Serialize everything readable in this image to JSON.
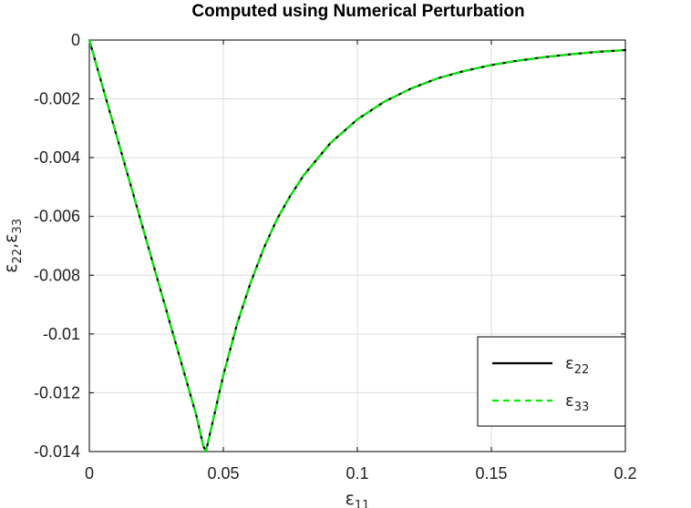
{
  "chart_data": {
    "type": "line",
    "title": "Computed using Numerical Perturbation",
    "xlabel": {
      "base": "ε",
      "sub": "11"
    },
    "ylabel": {
      "base1": "ε",
      "sub1": "22",
      "sep": ",",
      "base2": "ε",
      "sub2": "33"
    },
    "xlim": [
      0,
      0.2
    ],
    "ylim": [
      -0.014,
      0
    ],
    "xticks": [
      0,
      0.05,
      0.1,
      0.15,
      0.2
    ],
    "xtick_labels": [
      "0",
      "0.05",
      "0.1",
      "0.15",
      "0.2"
    ],
    "yticks": [
      0,
      -0.002,
      -0.004,
      -0.006,
      -0.008,
      -0.01,
      -0.012,
      -0.014
    ],
    "ytick_labels": [
      "0",
      "-0.002",
      "-0.004",
      "-0.006",
      "-0.008",
      "-0.01",
      "-0.012",
      "-0.014"
    ],
    "grid": true,
    "legend_position": "bottom-right",
    "series": [
      {
        "name": "ε22",
        "label_base": "ε",
        "label_sub": "22",
        "color": "#000000",
        "dash": "solid",
        "x": [
          0,
          0.005,
          0.01,
          0.015,
          0.02,
          0.025,
          0.03,
          0.035,
          0.04,
          0.0425,
          0.0435,
          0.045,
          0.05,
          0.055,
          0.06,
          0.065,
          0.07,
          0.075,
          0.08,
          0.09,
          0.1,
          0.11,
          0.12,
          0.13,
          0.14,
          0.15,
          0.16,
          0.17,
          0.18,
          0.19,
          0.2
        ],
        "y": [
          0,
          -0.0016,
          -0.0032,
          -0.0048,
          -0.0064,
          -0.008,
          -0.0096,
          -0.0112,
          -0.0128,
          -0.0138,
          -0.014,
          -0.0134,
          -0.0114,
          -0.0097,
          -0.0083,
          -0.0071,
          -0.0061,
          -0.0053,
          -0.0046,
          -0.0035,
          -0.0027,
          -0.0021,
          -0.00165,
          -0.0013,
          -0.00105,
          -0.00085,
          -0.0007,
          -0.00058,
          -0.00048,
          -0.0004,
          -0.00034
        ]
      },
      {
        "name": "ε33",
        "label_base": "ε",
        "label_sub": "33",
        "color": "#00ee00",
        "dash": "dashed",
        "x": [
          0,
          0.005,
          0.01,
          0.015,
          0.02,
          0.025,
          0.03,
          0.035,
          0.04,
          0.0425,
          0.0435,
          0.045,
          0.05,
          0.055,
          0.06,
          0.065,
          0.07,
          0.075,
          0.08,
          0.09,
          0.1,
          0.11,
          0.12,
          0.13,
          0.14,
          0.15,
          0.16,
          0.17,
          0.18,
          0.19,
          0.2
        ],
        "y": [
          0,
          -0.0016,
          -0.0032,
          -0.0048,
          -0.0064,
          -0.008,
          -0.0096,
          -0.0112,
          -0.0128,
          -0.0138,
          -0.014,
          -0.0134,
          -0.0114,
          -0.0097,
          -0.0083,
          -0.0071,
          -0.0061,
          -0.0053,
          -0.0046,
          -0.0035,
          -0.0027,
          -0.0021,
          -0.00165,
          -0.0013,
          -0.00105,
          -0.00085,
          -0.0007,
          -0.00058,
          -0.00048,
          -0.0004,
          -0.00034
        ]
      }
    ]
  }
}
